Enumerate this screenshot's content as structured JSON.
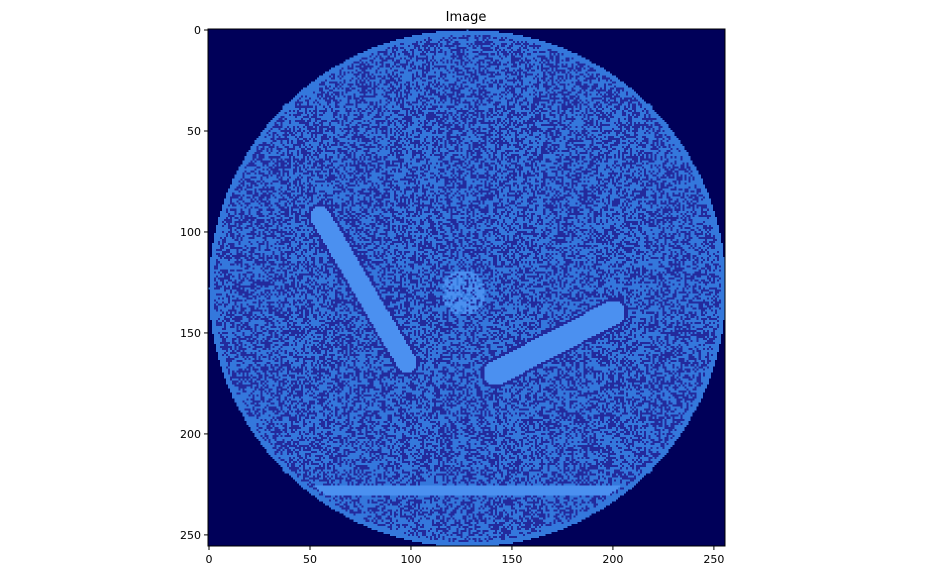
{
  "chart_data": {
    "type": "heatmap",
    "title": "Image",
    "xlabel": "",
    "ylabel": "",
    "xlim": [
      0,
      256
    ],
    "ylim": [
      256,
      0
    ],
    "x_ticks": [
      0,
      50,
      100,
      150,
      200,
      250
    ],
    "y_ticks": [
      0,
      50,
      100,
      150,
      200,
      250
    ],
    "x_tick_labels": [
      "0",
      "50",
      "100",
      "150",
      "200",
      "250"
    ],
    "y_tick_labels": [
      "0",
      "50",
      "100",
      "150",
      "200",
      "250"
    ],
    "grid": false,
    "image_size": [
      256,
      256
    ],
    "colormap_colors": {
      "background": "#000059",
      "disk_base": "#3478dc",
      "speckle_dark": "#232a9c",
      "feature_light": "#4b90f0"
    },
    "content_description_values": {
      "disk_center": [
        128,
        128
      ],
      "disk_radius": 128,
      "central_blob_center": [
        126,
        130
      ],
      "left_arm": [
        [
          55,
          92
        ],
        [
          98,
          165
        ]
      ],
      "right_arm": [
        [
          200,
          140
        ],
        [
          142,
          170
        ]
      ],
      "lower_band_y": 228
    }
  }
}
